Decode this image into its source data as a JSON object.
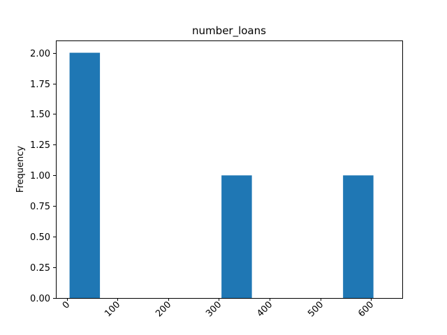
{
  "chart_data": {
    "type": "bar",
    "subtype": "histogram",
    "title": "number_loans",
    "xlabel": "",
    "ylabel": "Frequency",
    "xlim": [
      -22,
      662
    ],
    "ylim": [
      0,
      2.1
    ],
    "bins": [
      {
        "start": 5,
        "end": 65,
        "count": 2
      },
      {
        "start": 65,
        "end": 125,
        "count": 0
      },
      {
        "start": 125,
        "end": 185,
        "count": 0
      },
      {
        "start": 185,
        "end": 245,
        "count": 0
      },
      {
        "start": 245,
        "end": 305,
        "count": 0
      },
      {
        "start": 305,
        "end": 365,
        "count": 1
      },
      {
        "start": 365,
        "end": 425,
        "count": 0
      },
      {
        "start": 425,
        "end": 485,
        "count": 0
      },
      {
        "start": 485,
        "end": 545,
        "count": 0
      },
      {
        "start": 545,
        "end": 605,
        "count": 1
      }
    ],
    "xticks": [
      "0",
      "100",
      "200",
      "300",
      "400",
      "500",
      "600"
    ],
    "xtick_values": [
      0,
      100,
      200,
      300,
      400,
      500,
      600
    ],
    "yticks": [
      "0.00",
      "0.25",
      "0.50",
      "0.75",
      "1.00",
      "1.25",
      "1.50",
      "1.75",
      "2.00"
    ],
    "ytick_values": [
      0,
      0.25,
      0.5,
      0.75,
      1.0,
      1.25,
      1.5,
      1.75,
      2.0
    ],
    "bar_color": "#1f77b4",
    "grid": false,
    "legend": "none"
  }
}
